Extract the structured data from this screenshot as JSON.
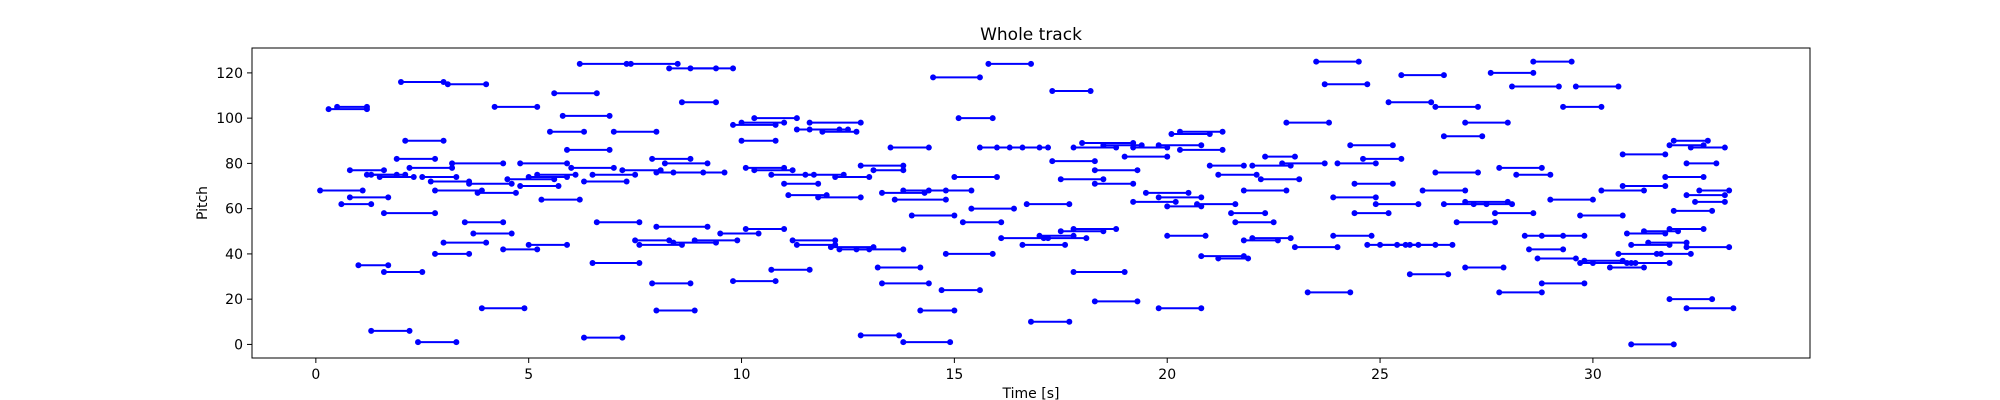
{
  "chart_data": {
    "type": "scatter",
    "title": "Whole track",
    "xlabel": "Time [s]",
    "ylabel": "Pitch",
    "xlim": [
      -1.5,
      35.1
    ],
    "ylim": [
      -6,
      131
    ],
    "xticks": [
      0,
      5,
      10,
      15,
      20,
      25,
      30
    ],
    "yticks": [
      0,
      20,
      40,
      60,
      80,
      100,
      120
    ],
    "grid": false,
    "legend": "none",
    "series_color": "#0000ff",
    "notes": [
      [
        0.3,
        1.2,
        104
      ],
      [
        0.5,
        1.2,
        105
      ],
      [
        0.1,
        1.1,
        68
      ],
      [
        0.6,
        1.3,
        62
      ],
      [
        0.8,
        1.7,
        65
      ],
      [
        0.8,
        1.6,
        77
      ],
      [
        1.2,
        1.9,
        75
      ],
      [
        1.3,
        2.1,
        75
      ],
      [
        1.5,
        2.3,
        74
      ],
      [
        1.0,
        1.7,
        35
      ],
      [
        1.6,
        2.5,
        32
      ],
      [
        1.3,
        2.2,
        6
      ],
      [
        2.4,
        3.3,
        1
      ],
      [
        1.6,
        2.8,
        58
      ],
      [
        1.9,
        2.8,
        82
      ],
      [
        2.1,
        3.0,
        90
      ],
      [
        2.0,
        3.0,
        116
      ],
      [
        3.1,
        4.0,
        115
      ],
      [
        2.2,
        3.2,
        78
      ],
      [
        2.5,
        3.3,
        74
      ],
      [
        2.7,
        3.6,
        72
      ],
      [
        2.8,
        3.9,
        68
      ],
      [
        3.0,
        4.0,
        45
      ],
      [
        2.8,
        3.6,
        40
      ],
      [
        3.5,
        4.4,
        54
      ],
      [
        3.7,
        4.6,
        49
      ],
      [
        3.2,
        4.4,
        80
      ],
      [
        3.6,
        4.6,
        71
      ],
      [
        3.8,
        4.7,
        67
      ],
      [
        3.9,
        4.9,
        16
      ],
      [
        4.4,
        5.2,
        42
      ],
      [
        5.0,
        5.9,
        44
      ],
      [
        4.2,
        5.2,
        105
      ],
      [
        4.8,
        5.9,
        80
      ],
      [
        4.5,
        5.6,
        73
      ],
      [
        4.8,
        5.7,
        70
      ],
      [
        5.0,
        5.9,
        74
      ],
      [
        5.2,
        6.1,
        75
      ],
      [
        5.3,
        6.2,
        64
      ],
      [
        5.5,
        6.3,
        94
      ],
      [
        5.6,
        6.6,
        111
      ],
      [
        5.8,
        6.9,
        101
      ],
      [
        5.9,
        6.9,
        86
      ],
      [
        6.0,
        7.0,
        78
      ],
      [
        6.3,
        7.3,
        72
      ],
      [
        6.2,
        7.3,
        124
      ],
      [
        6.5,
        7.5,
        75
      ],
      [
        6.6,
        7.6,
        54
      ],
      [
        6.5,
        7.6,
        36
      ],
      [
        6.3,
        7.2,
        3
      ],
      [
        7.0,
        8.0,
        94
      ],
      [
        7.2,
        8.1,
        77
      ],
      [
        7.5,
        8.3,
        46
      ],
      [
        7.6,
        8.6,
        44
      ],
      [
        7.9,
        8.8,
        27
      ],
      [
        8.0,
        8.9,
        15
      ],
      [
        7.4,
        8.5,
        124
      ],
      [
        8.3,
        9.4,
        122
      ],
      [
        8.8,
        9.8,
        122
      ],
      [
        8.6,
        9.4,
        107
      ],
      [
        7.9,
        8.8,
        82
      ],
      [
        8.2,
        9.2,
        80
      ],
      [
        8.0,
        9.1,
        76
      ],
      [
        8.4,
        9.6,
        76
      ],
      [
        8.0,
        9.2,
        52
      ],
      [
        8.4,
        9.4,
        45
      ],
      [
        8.9,
        9.9,
        46
      ],
      [
        9.5,
        10.4,
        49
      ],
      [
        9.8,
        10.8,
        97
      ],
      [
        10.0,
        10.8,
        90
      ],
      [
        10.0,
        11.0,
        98
      ],
      [
        10.3,
        11.3,
        100
      ],
      [
        10.1,
        11.0,
        78
      ],
      [
        10.3,
        11.2,
        77
      ],
      [
        10.7,
        11.7,
        75
      ],
      [
        11.0,
        11.8,
        71
      ],
      [
        11.1,
        12.0,
        66
      ],
      [
        11.3,
        12.3,
        95
      ],
      [
        11.6,
        12.5,
        95
      ],
      [
        11.9,
        12.7,
        94
      ],
      [
        11.6,
        12.8,
        98
      ],
      [
        11.5,
        12.4,
        75
      ],
      [
        11.8,
        12.8,
        65
      ],
      [
        12.2,
        13.0,
        74
      ],
      [
        11.2,
        12.2,
        46
      ],
      [
        11.3,
        12.2,
        44
      ],
      [
        12.1,
        13.1,
        43
      ],
      [
        12.3,
        13.0,
        42
      ],
      [
        10.1,
        11.0,
        51
      ],
      [
        10.7,
        11.6,
        33
      ],
      [
        9.8,
        10.8,
        28
      ],
      [
        12.7,
        13.8,
        42
      ],
      [
        12.8,
        13.8,
        79
      ],
      [
        13.1,
        13.8,
        77
      ],
      [
        13.3,
        14.3,
        67
      ],
      [
        13.5,
        14.4,
        87
      ],
      [
        13.8,
        14.8,
        68
      ],
      [
        13.6,
        14.8,
        64
      ],
      [
        14.0,
        15.0,
        57
      ],
      [
        14.4,
        15.4,
        68
      ],
      [
        13.2,
        14.2,
        34
      ],
      [
        13.3,
        14.4,
        27
      ],
      [
        14.2,
        15.0,
        15
      ],
      [
        13.8,
        14.9,
        1
      ],
      [
        12.8,
        13.7,
        4
      ],
      [
        14.7,
        15.6,
        24
      ],
      [
        14.8,
        15.9,
        40
      ],
      [
        15.1,
        15.9,
        100
      ],
      [
        14.5,
        15.6,
        118
      ],
      [
        15.0,
        16.0,
        74
      ],
      [
        15.2,
        16.1,
        54
      ],
      [
        15.4,
        16.4,
        60
      ],
      [
        15.6,
        16.6,
        87
      ],
      [
        15.8,
        16.8,
        124
      ],
      [
        16.0,
        17.0,
        87
      ],
      [
        16.3,
        17.2,
        87
      ],
      [
        16.1,
        17.2,
        47
      ],
      [
        16.6,
        17.6,
        44
      ],
      [
        16.7,
        17.7,
        62
      ],
      [
        17.0,
        17.8,
        48
      ],
      [
        16.8,
        17.7,
        10
      ],
      [
        17.1,
        18.1,
        47
      ],
      [
        17.3,
        18.3,
        81
      ],
      [
        17.5,
        18.5,
        73
      ],
      [
        17.8,
        18.8,
        87
      ],
      [
        17.3,
        18.2,
        112
      ],
      [
        17.5,
        18.5,
        50
      ],
      [
        17.8,
        18.8,
        51
      ],
      [
        17.8,
        19.0,
        32
      ],
      [
        18.0,
        19.2,
        89
      ],
      [
        18.3,
        19.3,
        77
      ],
      [
        18.5,
        19.4,
        88
      ],
      [
        18.3,
        19.2,
        71
      ],
      [
        19.0,
        20.0,
        83
      ],
      [
        19.2,
        20.0,
        87
      ],
      [
        19.2,
        20.2,
        63
      ],
      [
        19.5,
        20.5,
        67
      ],
      [
        19.8,
        20.8,
        65
      ],
      [
        20.0,
        20.8,
        61
      ],
      [
        19.8,
        20.8,
        88
      ],
      [
        20.1,
        21.0,
        93
      ],
      [
        20.3,
        21.3,
        94
      ],
      [
        20.3,
        21.3,
        86
      ],
      [
        20.7,
        21.6,
        62
      ],
      [
        21.0,
        21.8,
        79
      ],
      [
        21.2,
        22.1,
        75
      ],
      [
        21.5,
        22.3,
        58
      ],
      [
        21.8,
        22.8,
        68
      ],
      [
        22.0,
        22.9,
        79
      ],
      [
        22.3,
        23.0,
        83
      ],
      [
        21.6,
        22.5,
        54
      ],
      [
        21.8,
        22.6,
        46
      ],
      [
        22.0,
        22.9,
        47
      ],
      [
        20.0,
        20.9,
        48
      ],
      [
        19.8,
        20.8,
        16
      ],
      [
        18.3,
        19.3,
        19
      ],
      [
        20.8,
        21.8,
        39
      ],
      [
        21.2,
        21.9,
        38
      ],
      [
        22.2,
        23.1,
        73
      ],
      [
        22.7,
        23.7,
        80
      ],
      [
        22.8,
        23.8,
        98
      ],
      [
        23.5,
        24.5,
        125
      ],
      [
        23.7,
        24.7,
        115
      ],
      [
        23.0,
        24.0,
        43
      ],
      [
        23.3,
        24.3,
        23
      ],
      [
        23.9,
        24.8,
        48
      ],
      [
        23.9,
        24.9,
        65
      ],
      [
        24.0,
        24.9,
        80
      ],
      [
        24.3,
        25.3,
        88
      ],
      [
        24.6,
        25.5,
        82
      ],
      [
        24.4,
        25.3,
        71
      ],
      [
        24.4,
        25.2,
        58
      ],
      [
        24.9,
        25.9,
        62
      ],
      [
        24.7,
        25.6,
        44
      ],
      [
        25.0,
        25.9,
        44
      ],
      [
        25.4,
        26.3,
        44
      ],
      [
        25.7,
        26.7,
        44
      ],
      [
        25.2,
        26.2,
        107
      ],
      [
        25.5,
        26.5,
        119
      ],
      [
        26.3,
        27.3,
        105
      ],
      [
        26.5,
        27.4,
        92
      ],
      [
        26.0,
        27.0,
        68
      ],
      [
        26.3,
        27.3,
        76
      ],
      [
        26.5,
        27.5,
        62
      ],
      [
        26.8,
        27.7,
        54
      ],
      [
        27.0,
        28.0,
        63
      ],
      [
        27.2,
        28.1,
        62
      ],
      [
        27.7,
        28.6,
        58
      ],
      [
        27.0,
        27.9,
        34
      ],
      [
        25.7,
        26.6,
        31
      ],
      [
        27.0,
        28.0,
        98
      ],
      [
        27.6,
        28.6,
        120
      ],
      [
        27.8,
        28.8,
        78
      ],
      [
        28.2,
        29.0,
        75
      ],
      [
        28.4,
        29.3,
        48
      ],
      [
        28.8,
        29.8,
        48
      ],
      [
        28.5,
        29.3,
        42
      ],
      [
        28.7,
        29.6,
        38
      ],
      [
        27.8,
        28.8,
        23
      ],
      [
        28.8,
        29.8,
        27
      ],
      [
        28.1,
        29.2,
        114
      ],
      [
        28.6,
        29.5,
        125
      ],
      [
        29.6,
        30.6,
        114
      ],
      [
        29.3,
        30.2,
        105
      ],
      [
        29.0,
        30.0,
        64
      ],
      [
        29.7,
        30.7,
        57
      ],
      [
        30.2,
        31.2,
        68
      ],
      [
        30.7,
        31.7,
        70
      ],
      [
        30.7,
        31.7,
        84
      ],
      [
        29.8,
        30.7,
        37
      ],
      [
        30.0,
        30.8,
        36
      ],
      [
        30.4,
        31.2,
        34
      ],
      [
        29.7,
        30.9,
        36
      ],
      [
        30.6,
        31.6,
        40
      ],
      [
        30.9,
        31.8,
        44
      ],
      [
        31.3,
        32.2,
        45
      ],
      [
        30.8,
        31.7,
        49
      ],
      [
        31.2,
        32.0,
        50
      ],
      [
        31.5,
        32.3,
        40
      ],
      [
        31.8,
        32.6,
        51
      ],
      [
        31.0,
        31.8,
        36
      ],
      [
        30.9,
        31.9,
        0
      ],
      [
        31.8,
        32.8,
        20
      ],
      [
        32.2,
        33.3,
        16
      ],
      [
        32.2,
        33.2,
        43
      ],
      [
        31.9,
        32.8,
        59
      ],
      [
        32.2,
        33.1,
        66
      ],
      [
        32.5,
        33.2,
        68
      ],
      [
        31.7,
        32.6,
        74
      ],
      [
        31.8,
        32.6,
        88
      ],
      [
        31.9,
        32.7,
        90
      ],
      [
        32.3,
        33.1,
        87
      ],
      [
        32.2,
        32.9,
        80
      ],
      [
        32.4,
        33.1,
        63
      ]
    ]
  }
}
